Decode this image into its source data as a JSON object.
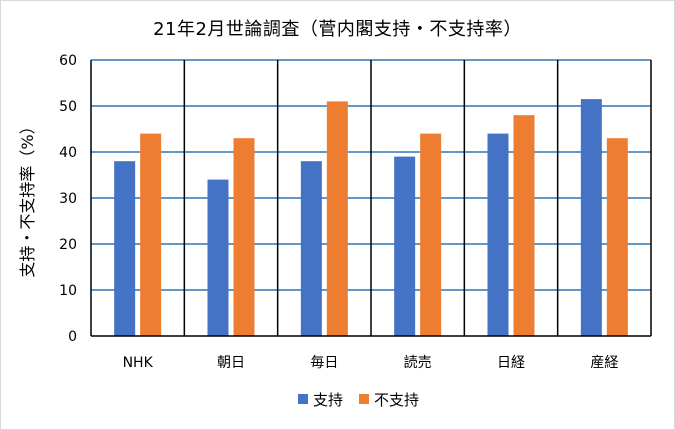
{
  "chart_data": {
    "type": "bar",
    "title": "21年2月世論調査（菅内閣支持・不支持率）",
    "ylabel": "支持・不支持率（%）",
    "xlabel": "",
    "categories": [
      "NHK",
      "朝日",
      "毎日",
      "読売",
      "日経",
      "産経"
    ],
    "series": [
      {
        "name": "支持",
        "color": "#4472c4",
        "values": [
          38,
          34,
          38,
          39,
          44,
          51.5
        ]
      },
      {
        "name": "不支持",
        "color": "#ed7d31",
        "values": [
          44,
          43,
          51,
          44,
          48,
          43
        ]
      }
    ],
    "ylim": [
      0,
      60
    ],
    "yticks": [
      0,
      10,
      20,
      30,
      40,
      50,
      60
    ],
    "grid": true,
    "grid_color": "#2e75b6",
    "category_divider_color": "#000000",
    "legend_position": "bottom"
  }
}
